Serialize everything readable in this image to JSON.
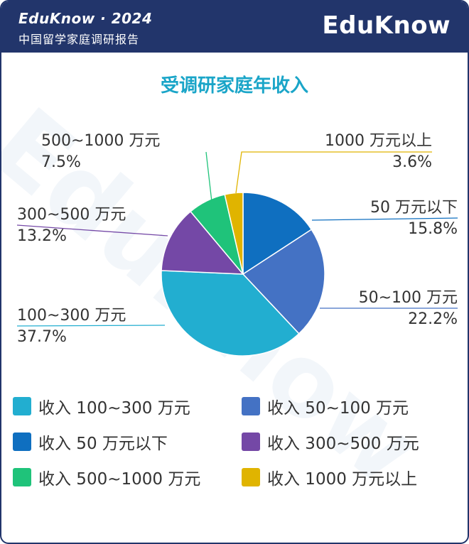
{
  "header": {
    "brand_line": "EduKnow · 2024",
    "report_line": "中国留学家庭调研报告",
    "logo": "EduKnow",
    "watermark": "EduKnow"
  },
  "colors": {
    "header_bg": "#22356b",
    "title": "#1aa5c8"
  },
  "chart_data": {
    "type": "pie",
    "title": "受调研家庭年收入",
    "slices": [
      {
        "label": "50 万元以下",
        "value": 15.8,
        "value_text": "15.8%",
        "legend": "收入 50 万元以下",
        "color": "#0f6fc0"
      },
      {
        "label": "50~100 万元",
        "value": 22.2,
        "value_text": "22.2%",
        "legend": "收入 50~100 万元",
        "color": "#4472c4"
      },
      {
        "label": "100~300 万元",
        "value": 37.7,
        "value_text": "37.7%",
        "legend": "收入 100~300 万元",
        "color": "#22aed0"
      },
      {
        "label": "300~500 万元",
        "value": 13.2,
        "value_text": "13.2%",
        "legend": "收入 300~500 万元",
        "color": "#7448a6"
      },
      {
        "label": "500~1000 万元",
        "value": 7.5,
        "value_text": "7.5%",
        "legend": "收入 500~1000 万元",
        "color": "#1fc37a"
      },
      {
        "label": "1000 万元以上",
        "value": 3.6,
        "value_text": "3.6%",
        "legend": "收入 1000 万元以上",
        "color": "#e0b400"
      }
    ],
    "legend_order": [
      2,
      1,
      0,
      3,
      4,
      5
    ]
  }
}
